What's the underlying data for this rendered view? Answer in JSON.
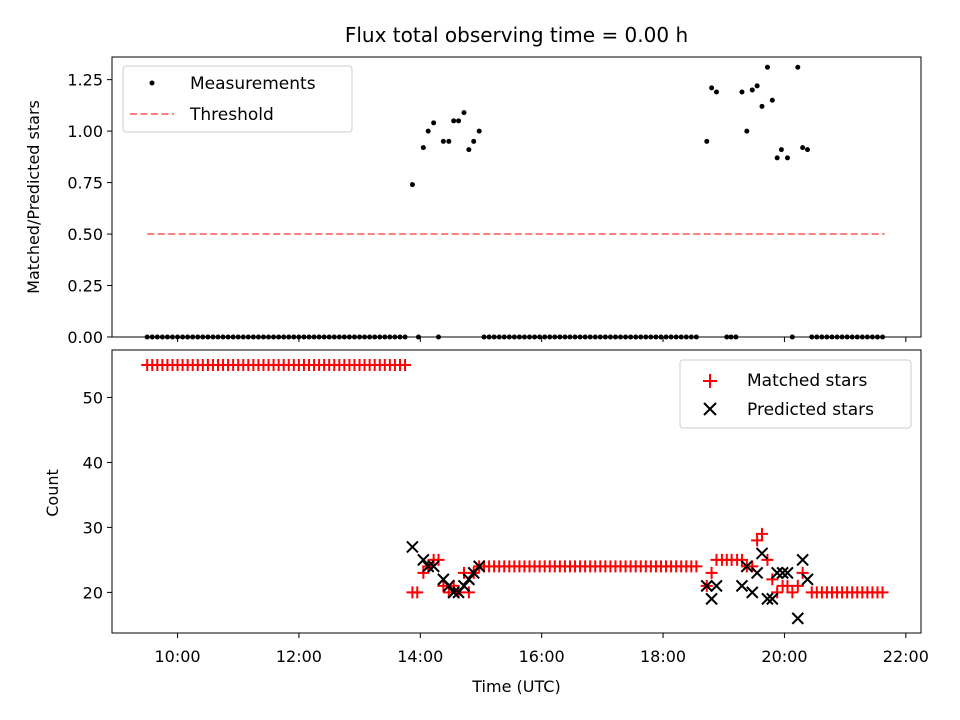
{
  "title": "Flux total observing time = 0.00 h",
  "xlabel": "Time (UTC)",
  "colors": {
    "measurement": "#000000",
    "threshold": "#ff7f7f",
    "matched": "#ff0000",
    "predicted": "#000000"
  },
  "chart_data": [
    {
      "type": "scatter",
      "ylabel": "Matched/Predicted stars",
      "ylim": [
        0,
        1.36
      ],
      "xlim": [
        8.92,
        22.25
      ],
      "yticks": [
        0.0,
        0.25,
        0.5,
        0.75,
        1.0,
        1.25
      ],
      "ytick_labels": [
        "0.00",
        "0.25",
        "0.50",
        "0.75",
        "1.00",
        "1.25"
      ],
      "grid": false,
      "legend_position": "upper-left",
      "legend": [
        "Measurements",
        "Threshold"
      ],
      "threshold": {
        "value": 0.5,
        "x_start": 9.5,
        "x_end": 21.65
      },
      "zero_runs": [
        {
          "x_start": 9.5,
          "x_end": 13.8,
          "step": 0.0833
        },
        {
          "x_start": 15.05,
          "x_end": 18.6,
          "step": 0.0833
        },
        {
          "x_start": 20.45,
          "x_end": 21.65,
          "step": 0.0833
        }
      ],
      "measurements": [
        [
          13.87,
          0.74
        ],
        [
          13.97,
          0.0
        ],
        [
          14.05,
          0.92
        ],
        [
          14.13,
          1.0
        ],
        [
          14.22,
          1.04
        ],
        [
          14.3,
          0.0
        ],
        [
          14.38,
          0.95
        ],
        [
          14.47,
          0.95
        ],
        [
          14.55,
          1.05
        ],
        [
          14.63,
          1.05
        ],
        [
          14.72,
          1.09
        ],
        [
          14.8,
          0.91
        ],
        [
          14.88,
          0.95
        ],
        [
          14.97,
          1.0
        ],
        [
          18.72,
          0.95
        ],
        [
          18.8,
          1.21
        ],
        [
          18.88,
          1.19
        ],
        [
          19.05,
          0.0
        ],
        [
          19.12,
          0.0
        ],
        [
          19.2,
          0.0
        ],
        [
          19.3,
          1.19
        ],
        [
          19.38,
          1.0
        ],
        [
          19.47,
          1.2
        ],
        [
          19.55,
          1.22
        ],
        [
          19.63,
          1.12
        ],
        [
          19.72,
          1.31
        ],
        [
          19.8,
          1.15
        ],
        [
          19.88,
          0.87
        ],
        [
          19.95,
          0.91
        ],
        [
          20.05,
          0.87
        ],
        [
          20.13,
          0.0
        ],
        [
          20.22,
          1.31
        ],
        [
          20.3,
          0.92
        ],
        [
          20.38,
          0.91
        ]
      ]
    },
    {
      "type": "scatter",
      "ylabel": "Count",
      "ylim": [
        13.75,
        57.3
      ],
      "xlim": [
        8.92,
        22.25
      ],
      "yticks": [
        20,
        30,
        40,
        50
      ],
      "ytick_labels": [
        "20",
        "30",
        "40",
        "50"
      ],
      "xticks": [
        10,
        12,
        14,
        16,
        18,
        20,
        22
      ],
      "xtick_labels": [
        "10:00",
        "12:00",
        "14:00",
        "16:00",
        "18:00",
        "20:00",
        "22:00"
      ],
      "grid": false,
      "legend_position": "upper-right",
      "legend": [
        "Matched stars",
        "Predicted stars"
      ],
      "matched_runs": [
        {
          "x_start": 9.5,
          "x_end": 13.8,
          "step": 0.0833,
          "y": 55
        },
        {
          "x_start": 15.05,
          "x_end": 18.6,
          "step": 0.0833,
          "y": 24
        },
        {
          "x_start": 20.45,
          "x_end": 21.65,
          "step": 0.0833,
          "y": 20
        }
      ],
      "matched": [
        [
          13.87,
          20
        ],
        [
          13.95,
          20
        ],
        [
          14.05,
          23
        ],
        [
          14.13,
          24
        ],
        [
          14.22,
          25
        ],
        [
          14.3,
          25
        ],
        [
          14.38,
          21
        ],
        [
          14.47,
          20
        ],
        [
          14.55,
          21
        ],
        [
          14.63,
          20
        ],
        [
          14.72,
          23
        ],
        [
          14.8,
          20
        ],
        [
          14.88,
          23
        ],
        [
          14.97,
          24
        ],
        [
          18.72,
          21
        ],
        [
          18.8,
          23
        ],
        [
          18.88,
          25
        ],
        [
          18.97,
          25
        ],
        [
          19.05,
          25
        ],
        [
          19.13,
          25
        ],
        [
          19.22,
          25
        ],
        [
          19.3,
          25
        ],
        [
          19.38,
          24
        ],
        [
          19.47,
          24
        ],
        [
          19.55,
          28
        ],
        [
          19.63,
          29
        ],
        [
          19.72,
          25
        ],
        [
          19.8,
          22
        ],
        [
          19.88,
          20
        ],
        [
          19.97,
          21
        ],
        [
          20.05,
          21
        ],
        [
          20.13,
          20
        ],
        [
          20.22,
          21
        ],
        [
          20.3,
          23
        ]
      ],
      "predicted": [
        [
          13.87,
          27
        ],
        [
          14.05,
          25
        ],
        [
          14.13,
          24
        ],
        [
          14.22,
          24
        ],
        [
          14.38,
          22
        ],
        [
          14.47,
          21
        ],
        [
          14.55,
          20
        ],
        [
          14.63,
          20
        ],
        [
          14.72,
          21
        ],
        [
          14.8,
          22
        ],
        [
          14.88,
          23
        ],
        [
          14.97,
          24
        ],
        [
          18.72,
          21
        ],
        [
          18.8,
          19
        ],
        [
          18.88,
          21
        ],
        [
          19.3,
          21
        ],
        [
          19.38,
          24
        ],
        [
          19.47,
          20
        ],
        [
          19.55,
          23
        ],
        [
          19.63,
          26
        ],
        [
          19.72,
          19
        ],
        [
          19.8,
          19
        ],
        [
          19.88,
          23
        ],
        [
          19.97,
          23
        ],
        [
          20.05,
          23
        ],
        [
          20.22,
          16
        ],
        [
          20.3,
          25
        ],
        [
          20.38,
          22
        ]
      ]
    }
  ]
}
